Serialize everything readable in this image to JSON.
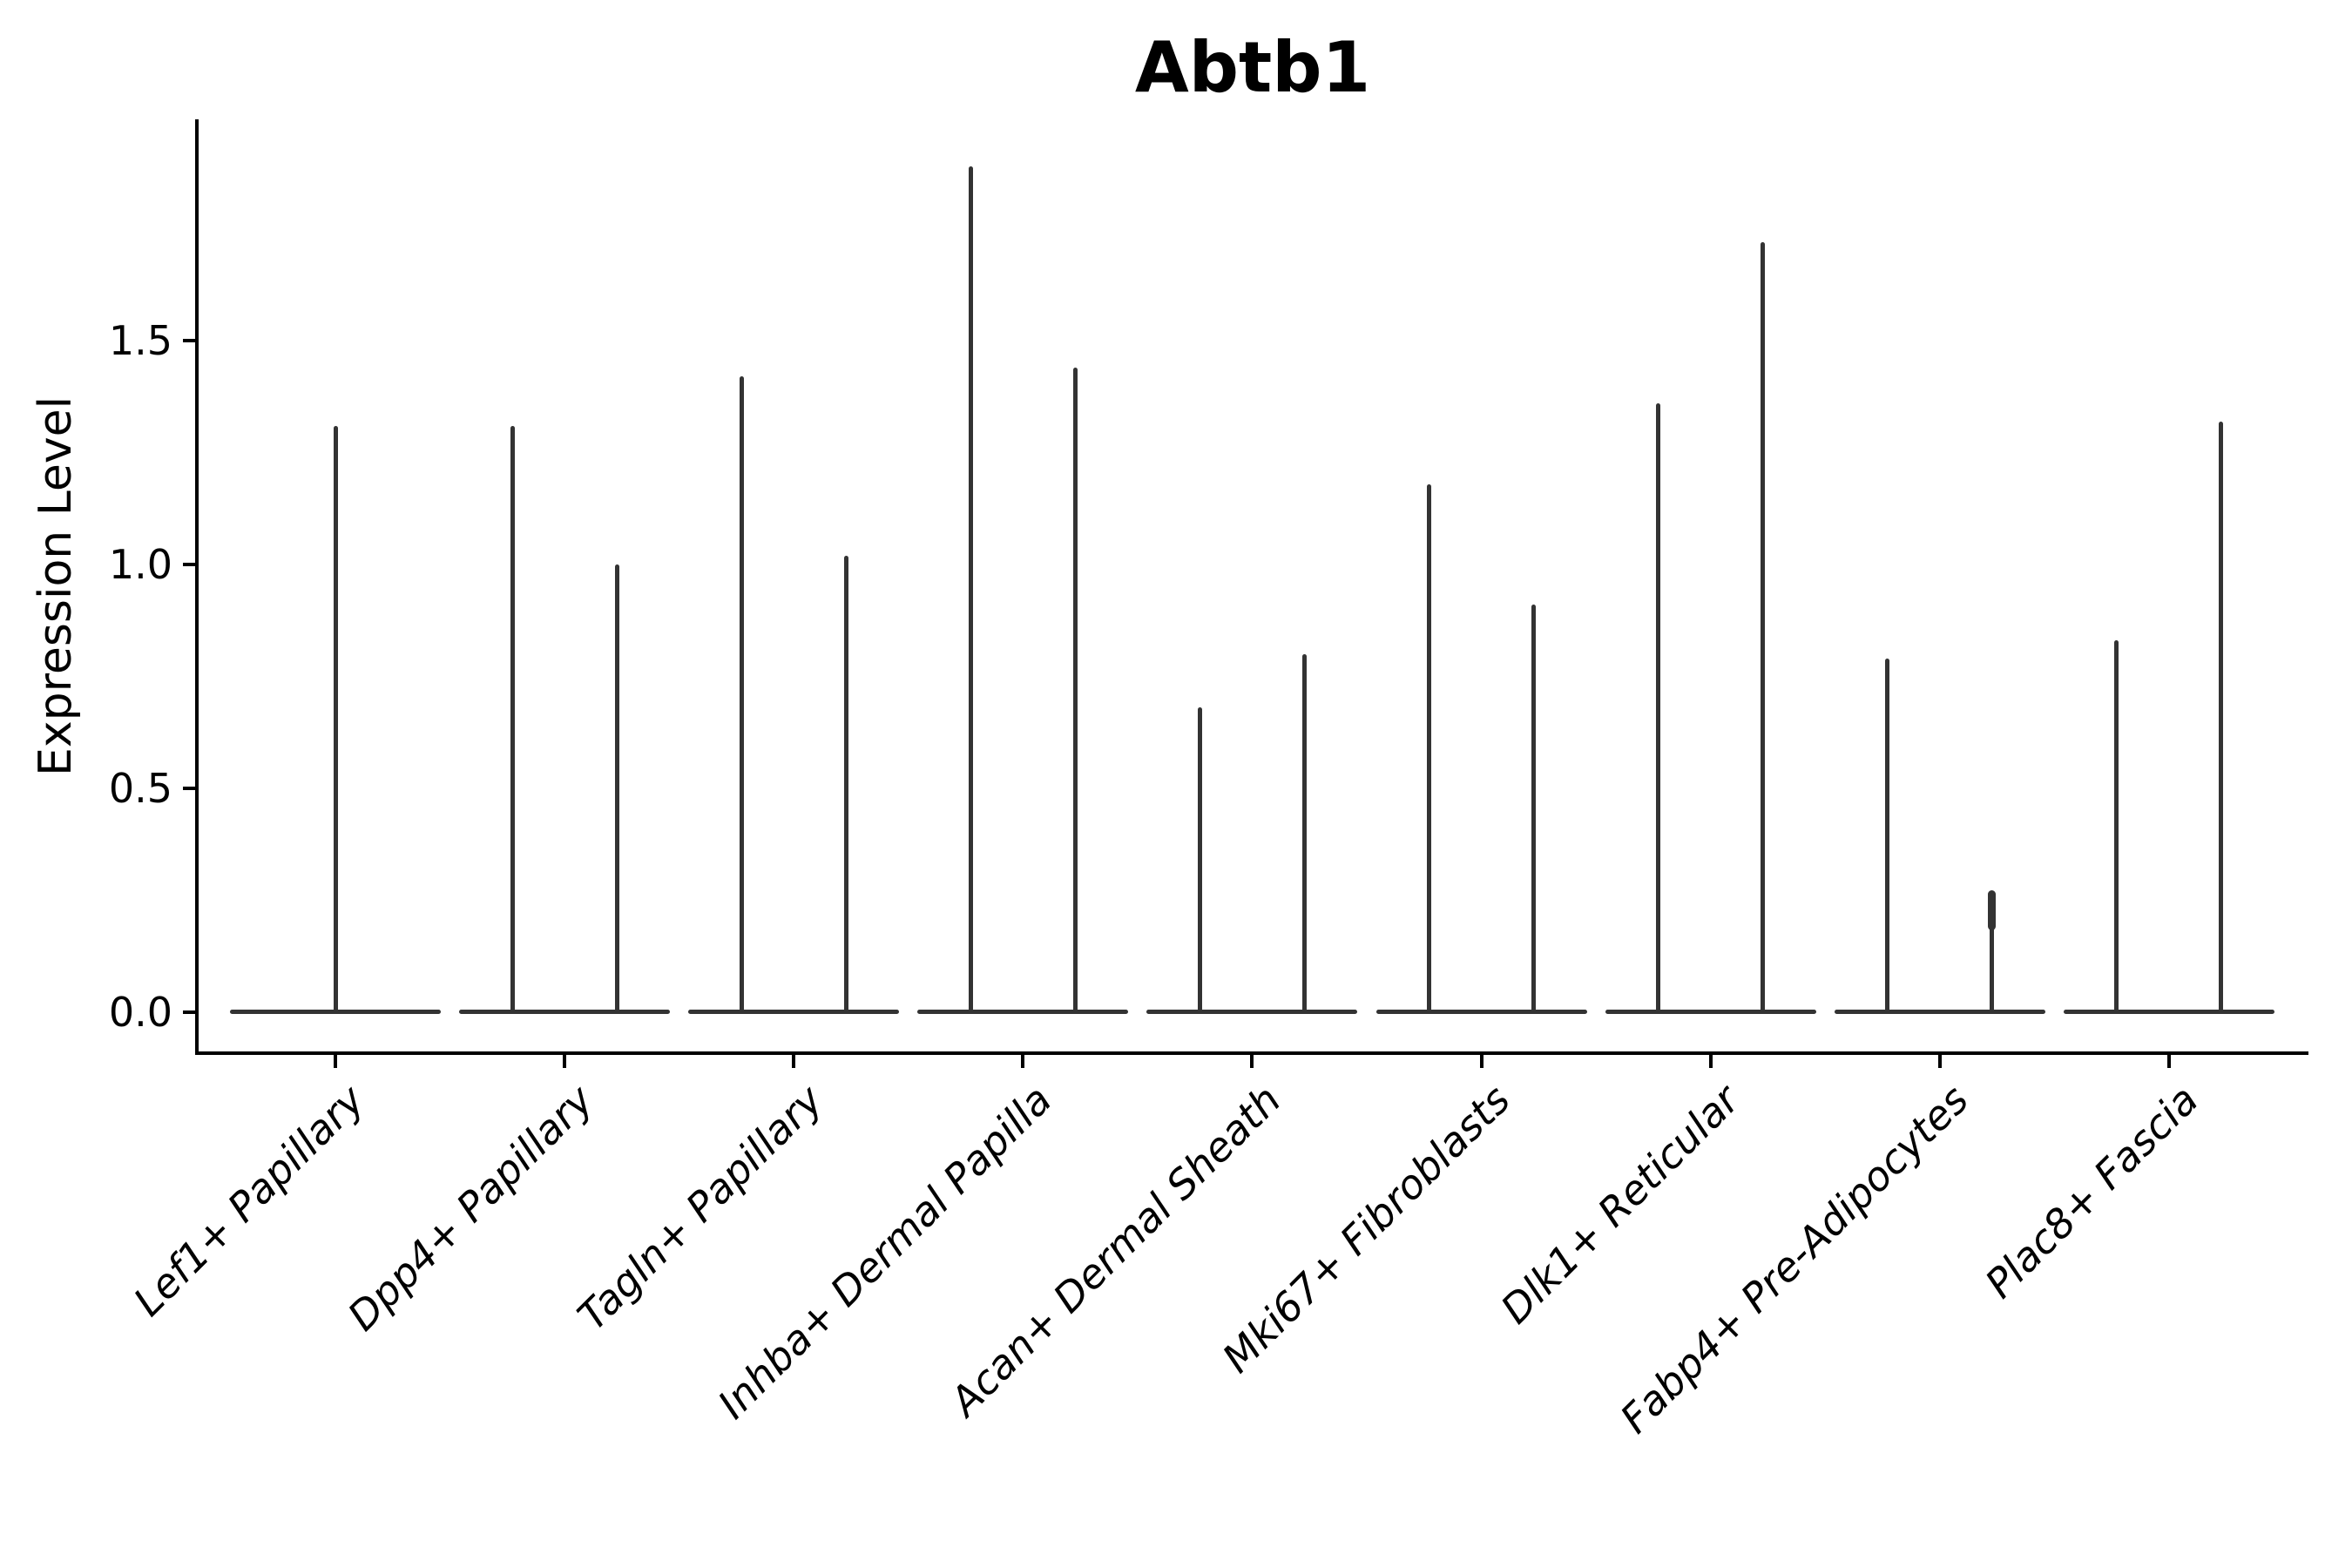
{
  "title": "Abtb1",
  "y_axis": {
    "label": "Expression Level",
    "tick_labels": [
      "0.0",
      "0.5",
      "1.0",
      "1.5"
    ],
    "tick_values": [
      0.0,
      0.5,
      1.0,
      1.5
    ]
  },
  "x_axis": {
    "categories": [
      "Lef1+ Papillary",
      "Dpp4+ Papillary",
      "Tagln+ Papillary",
      "Inhba+ Dermal Papilla",
      "Acan+ Dermal Sheath",
      "Mki67+ Fibroblasts",
      "Dlk1+ Reticular",
      "Fabp4+ Pre-Adipocytes",
      "Plac8+ Fascia"
    ]
  },
  "chart_data": {
    "type": "violin",
    "title": "Abtb1",
    "xlabel": "",
    "ylabel": "Expression Level",
    "ylim": [
      -0.1,
      2.0
    ],
    "y_ticks": [
      0.0,
      0.5,
      1.0,
      1.5
    ],
    "grid": false,
    "legend": null,
    "style_note": "zero-inflated single-cell expression violins: each violin collapses to a wide flat line at 0 with a thin vertical spike reaching the maximum expression value; categories with two spikes contain two side-by-side violins",
    "categories": [
      "Lef1+ Papillary",
      "Dpp4+ Papillary",
      "Tagln+ Papillary",
      "Inhba+ Dermal Papilla",
      "Acan+ Dermal Sheath",
      "Mki67+ Fibroblasts",
      "Dlk1+ Reticular",
      "Fabp4+ Pre-Adipocytes",
      "Plac8+ Fascia"
    ],
    "violins": [
      {
        "category": "Lef1+ Papillary",
        "spike_maxima": [
          1.31
        ]
      },
      {
        "category": "Dpp4+ Papillary",
        "spike_maxima": [
          1.31,
          1.0
        ]
      },
      {
        "category": "Tagln+ Papillary",
        "spike_maxima": [
          1.42,
          1.02
        ]
      },
      {
        "category": "Inhba+ Dermal Papilla",
        "spike_maxima": [
          1.89,
          1.44
        ]
      },
      {
        "category": "Acan+ Dermal Sheath",
        "spike_maxima": [
          0.68,
          0.8
        ]
      },
      {
        "category": "Mki67+ Fibroblasts",
        "spike_maxima": [
          1.18,
          0.91
        ]
      },
      {
        "category": "Dlk1+ Reticular",
        "spike_maxima": [
          1.36,
          1.72
        ]
      },
      {
        "category": "Fabp4+ Pre-Adipocytes",
        "spike_maxima": [
          0.79,
          0.27
        ],
        "tip_knob_on": [
          false,
          true
        ]
      },
      {
        "category": "Plac8+ Fascia",
        "spike_maxima": [
          0.83,
          1.32
        ]
      }
    ],
    "baseline_value": 0.0
  },
  "colors": {
    "violin": "#333333",
    "axis": "#000000",
    "text": "#000000",
    "background": "#ffffff"
  }
}
